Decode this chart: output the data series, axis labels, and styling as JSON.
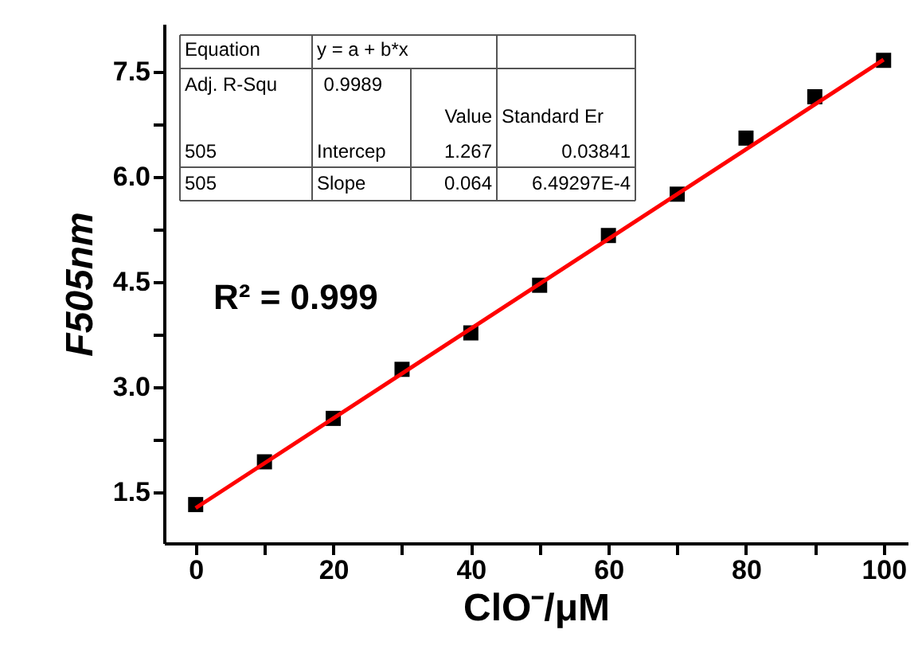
{
  "chart_data": {
    "type": "scatter",
    "xlabel": "ClO⁻/μM",
    "ylabel": "F505nm",
    "x": [
      0,
      10,
      20,
      30,
      40,
      50,
      60,
      70,
      80,
      90,
      100
    ],
    "series": [
      {
        "type": "scatter",
        "color": "#000000",
        "marker": "square",
        "values": [
          1.32,
          1.93,
          2.55,
          3.25,
          3.77,
          4.45,
          5.16,
          5.75,
          6.55,
          7.14,
          7.66
        ]
      },
      {
        "type": "line",
        "color": "#ff0000",
        "x": [
          0,
          100
        ],
        "values": [
          1.27,
          7.67
        ],
        "marker": "none"
      }
    ],
    "xlim": [
      -4.6,
      103.5
    ],
    "ylim": [
      0.77,
      8.18
    ],
    "xticks": [
      0,
      {
        "value": 10,
        "label": null
      },
      20,
      {
        "value": 30,
        "label": null
      },
      40,
      {
        "value": 50,
        "label": null
      },
      60,
      {
        "value": 70,
        "label": null
      },
      80,
      {
        "value": 90,
        "label": null
      },
      100
    ],
    "yticks": [
      1.5,
      {
        "value": 2.25,
        "label": null
      },
      {
        "value": 3,
        "label": "3.0"
      },
      {
        "value": 3.75,
        "label": null
      },
      4.5,
      {
        "value": 5.25,
        "label": null
      },
      {
        "value": 6,
        "label": "6.0"
      },
      {
        "value": 6.75,
        "label": null
      },
      7.5
    ],
    "annotations": [
      "Equation",
      "y = a + b*x",
      "Adj. R-Squ",
      "0.9989",
      "Value",
      "Standard Er",
      "505",
      "Intercep",
      "1.267",
      "0.03841",
      "505",
      "Slope",
      "0.064",
      "6.49297E-4",
      "R² = 0.999"
    ],
    "grid": false
  }
}
